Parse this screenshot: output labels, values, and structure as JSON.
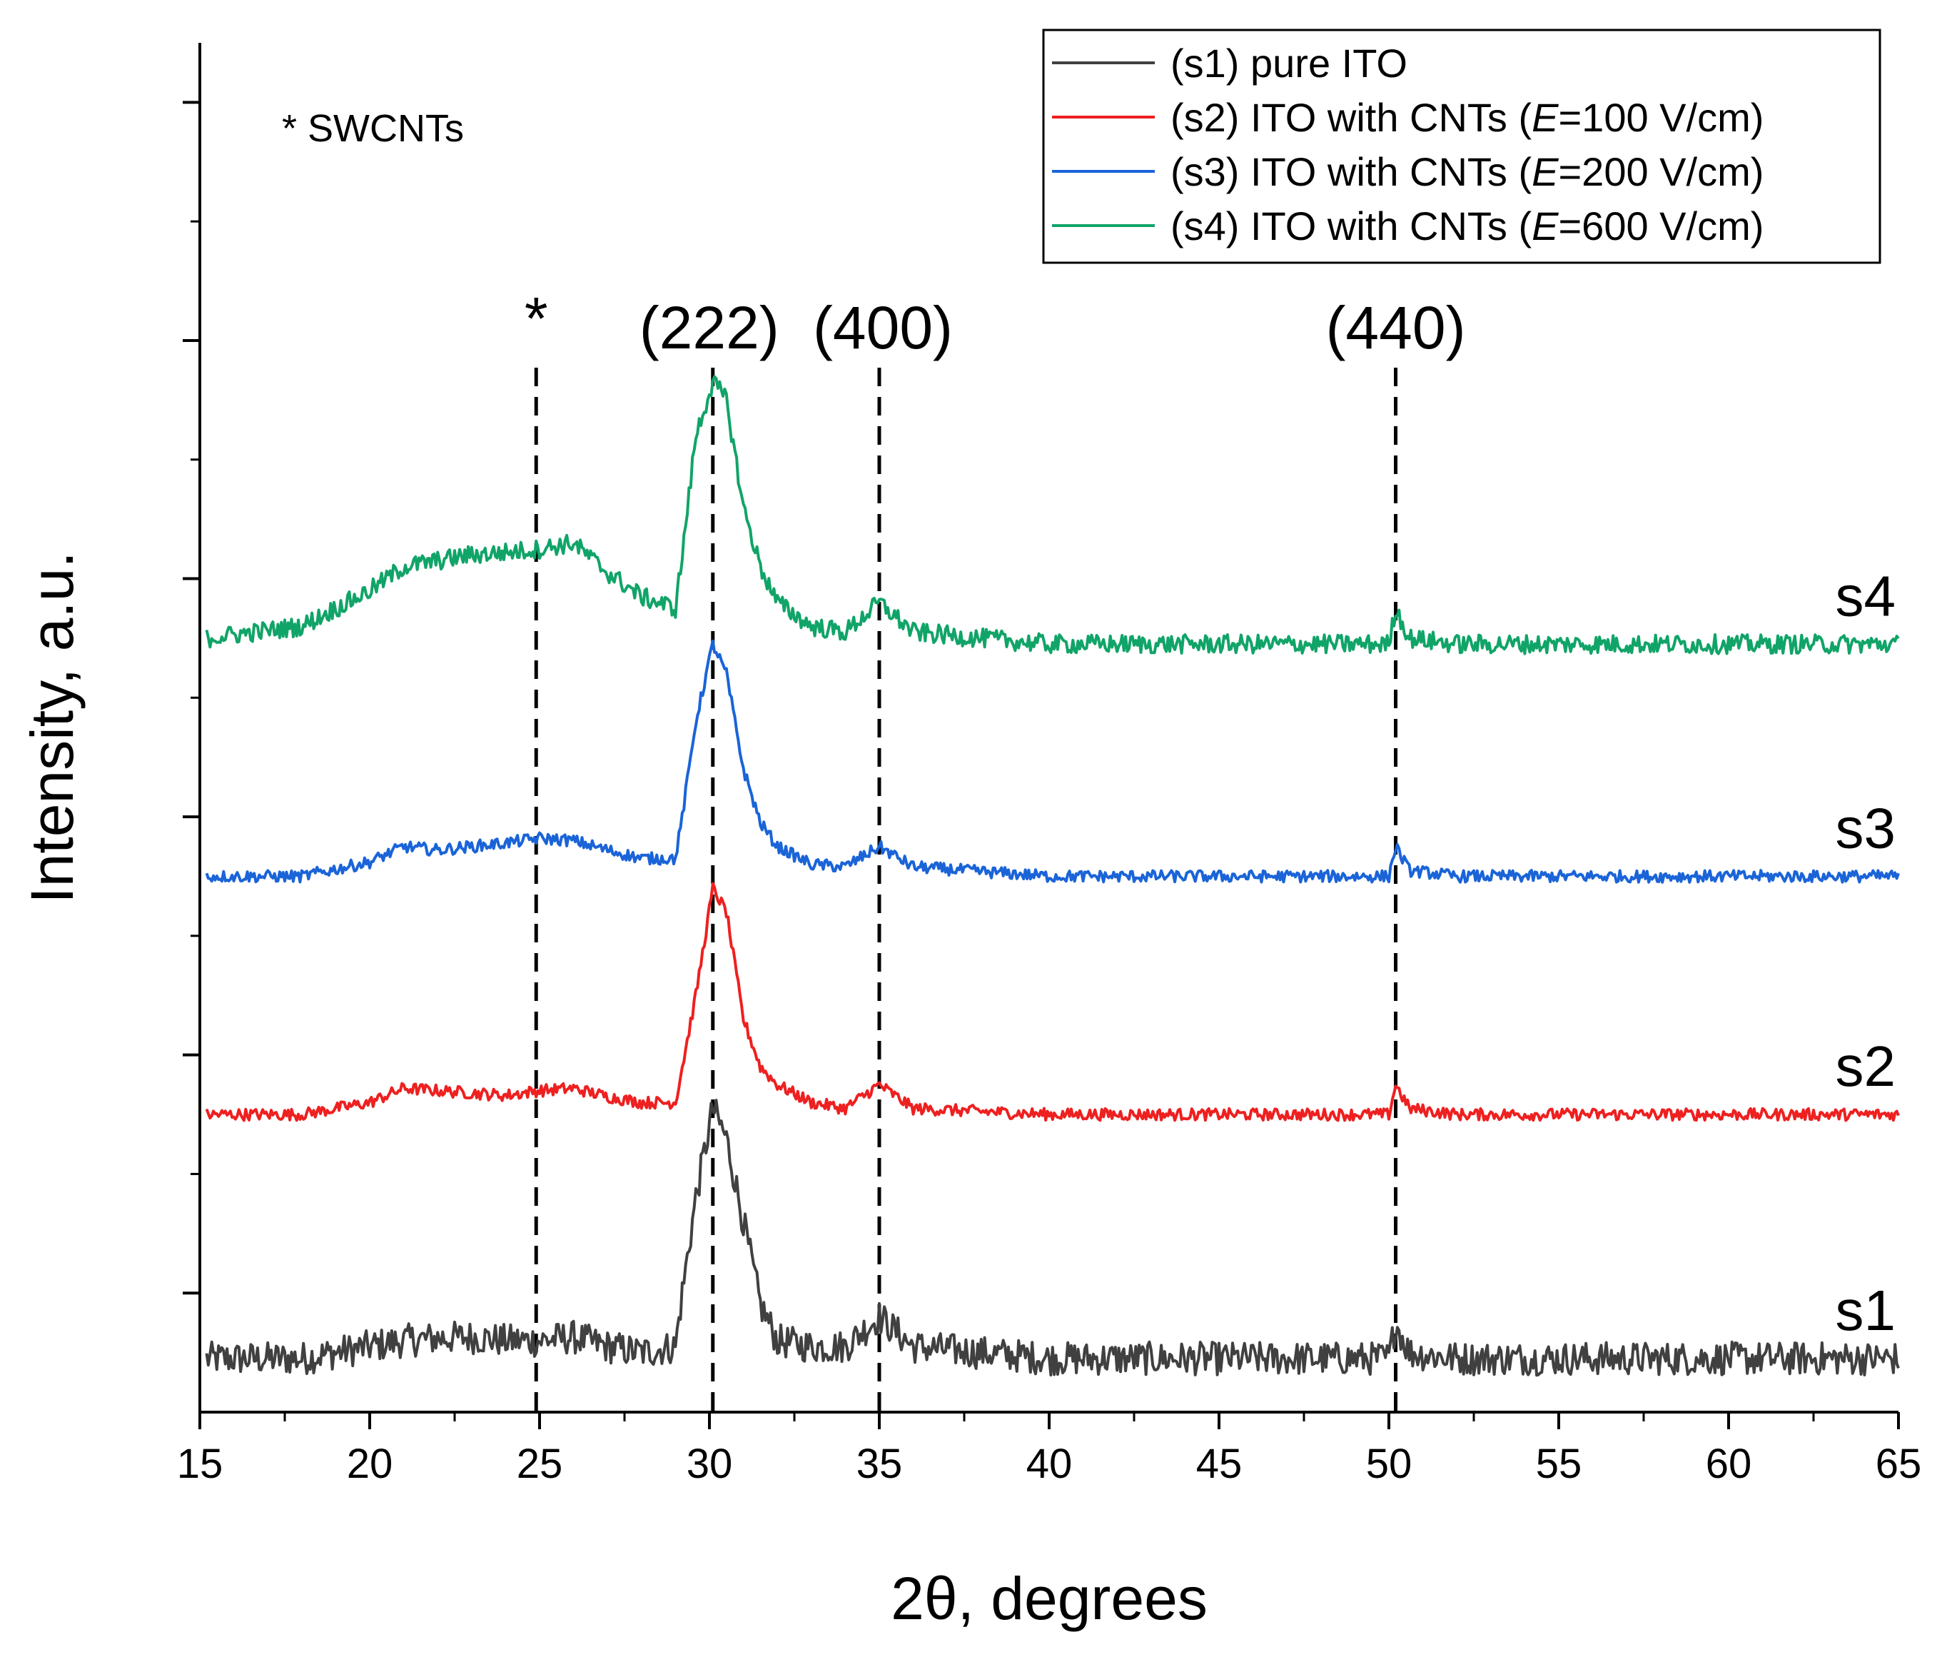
{
  "chart_data": {
    "type": "line",
    "title": "",
    "xlabel": "2θ, degrees",
    "ylabel": "Intensity, a.u.",
    "xlim": [
      15,
      65
    ],
    "xticks": [
      "15",
      "20",
      "25",
      "30",
      "35",
      "40",
      "45",
      "50",
      "55",
      "60",
      "65"
    ],
    "ylim": [
      0,
      11.5
    ],
    "y_ticks_unlabeled": true,
    "grid": false,
    "legend_position": "top-right",
    "annotations": {
      "swcnt_note": "* SWCNTs",
      "peaks": [
        {
          "label": "*",
          "x": 24.9
        },
        {
          "label": "(222)",
          "x": 30.1
        },
        {
          "label": "(400)",
          "x": 35.0
        },
        {
          "label": "(440)",
          "x": 50.2
        }
      ]
    },
    "series": [
      {
        "name": "(s1) pure ITO",
        "legend_prefix": "(s1) pure ITO",
        "legend_e": "",
        "legend_suffix": "",
        "label": "s1",
        "color": "#404040",
        "baseline": 0.45,
        "noise": 0.14,
        "x": [
          15.2,
          18,
          20,
          21,
          22,
          23,
          24,
          25,
          26,
          27,
          28,
          29,
          29.2,
          29.6,
          30.1,
          30.5,
          31,
          31.5,
          32,
          33,
          34,
          35,
          36,
          40,
          45,
          50,
          50.2,
          50.6,
          52,
          55,
          60,
          65
        ],
        "y": [
          0.45,
          0.45,
          0.55,
          0.6,
          0.62,
          0.63,
          0.6,
          0.6,
          0.63,
          0.55,
          0.5,
          0.55,
          1.0,
          1.8,
          2.55,
          2.3,
          1.6,
          0.9,
          0.6,
          0.55,
          0.55,
          0.8,
          0.55,
          0.45,
          0.45,
          0.45,
          0.75,
          0.5,
          0.45,
          0.45,
          0.45,
          0.45
        ]
      },
      {
        "name": "(s2) ITO with CNTs (E=100 V/cm)",
        "legend_prefix": "(s2) ITO with CNTs (",
        "legend_e": "E",
        "legend_suffix": "=100 V/cm)",
        "label": "s2",
        "color": "#ee2020",
        "baseline": 2.5,
        "noise": 0.05,
        "x": [
          15.2,
          18,
          20,
          21,
          22,
          23,
          24,
          25,
          26,
          27,
          28,
          29,
          29.2,
          29.6,
          30.1,
          30.5,
          31,
          31.5,
          32,
          33,
          34,
          35,
          36,
          40,
          45,
          50,
          50.2,
          50.6,
          52,
          55,
          60,
          65
        ],
        "y": [
          2.5,
          2.5,
          2.6,
          2.72,
          2.7,
          2.68,
          2.66,
          2.7,
          2.72,
          2.65,
          2.6,
          2.6,
          2.9,
          3.5,
          4.4,
          4.2,
          3.3,
          2.9,
          2.75,
          2.6,
          2.55,
          2.75,
          2.55,
          2.5,
          2.5,
          2.5,
          2.75,
          2.55,
          2.5,
          2.5,
          2.5,
          2.5
        ]
      },
      {
        "name": "(s3) ITO with CNTs (E=200 V/cm)",
        "legend_prefix": "(s3) ITO with CNTs (",
        "legend_e": "E",
        "legend_suffix": "=200 V/cm)",
        "label": "s3",
        "color": "#1a64d8",
        "baseline": 4.5,
        "noise": 0.05,
        "x": [
          15.2,
          18,
          20,
          21,
          22,
          23,
          24,
          25,
          26,
          27,
          28,
          29,
          29.2,
          29.6,
          30.1,
          30.5,
          31,
          31.5,
          32,
          33,
          34,
          35,
          36,
          40,
          45,
          50,
          50.2,
          50.6,
          52,
          55,
          60,
          65
        ],
        "y": [
          4.5,
          4.5,
          4.62,
          4.75,
          4.72,
          4.75,
          4.78,
          4.82,
          4.8,
          4.72,
          4.65,
          4.65,
          5.0,
          5.8,
          6.45,
          6.2,
          5.4,
          4.95,
          4.75,
          4.6,
          4.58,
          4.75,
          4.58,
          4.5,
          4.5,
          4.5,
          4.75,
          4.55,
          4.5,
          4.5,
          4.5,
          4.5
        ]
      },
      {
        "name": "(s4) ITO with CNTs (E=600 V/cm)",
        "legend_prefix": "(s4) ITO with CNTs (",
        "legend_e": "E",
        "legend_suffix": "=600 V/cm)",
        "label": "s4",
        "color": "#11a468",
        "baseline": 6.5,
        "noise": 0.08,
        "x": [
          15.2,
          18,
          20,
          21,
          22,
          23,
          24,
          25,
          26,
          27,
          28,
          29,
          29.2,
          29.6,
          30.1,
          30.5,
          31,
          31.5,
          32,
          33,
          34,
          35,
          36,
          40,
          45,
          50,
          50.2,
          50.6,
          52,
          55,
          60,
          65
        ],
        "y": [
          6.5,
          6.6,
          6.9,
          7.1,
          7.15,
          7.2,
          7.22,
          7.25,
          7.3,
          7.05,
          6.85,
          6.75,
          7.2,
          8.2,
          8.65,
          8.5,
          7.6,
          7.1,
          6.8,
          6.6,
          6.55,
          6.8,
          6.55,
          6.45,
          6.45,
          6.45,
          6.75,
          6.5,
          6.45,
          6.45,
          6.45,
          6.45
        ]
      }
    ]
  }
}
